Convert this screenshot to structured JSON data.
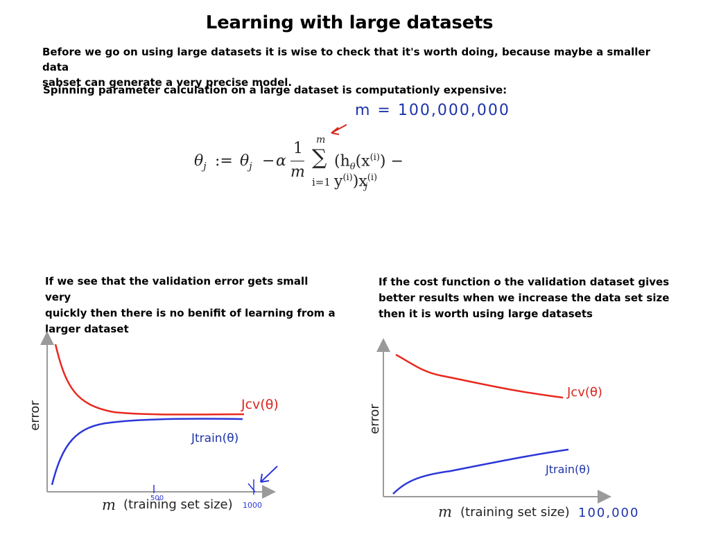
{
  "title": "Learning with large datasets",
  "intro": {
    "line1": "Before we go on using large datasets it is wise to check that it's worth doing, because maybe a smaller data",
    "line2": "sabset   can generate a very precise model.",
    "line3": "Spinning parameter calculation on a large dataset is computationly expensive:"
  },
  "handwritten_m": "m = 100,000,000",
  "formula": {
    "lhs": "θ",
    "lhs_sub": "j",
    "assign": ":=",
    "theta2": "θ",
    "theta2_sub": "j",
    "minus": "−",
    "alpha": "α",
    "frac_num": "1",
    "frac_den": "m",
    "sum_top": "m",
    "sum_symbol": "∑",
    "sum_bottom": "i=1",
    "body": "(h",
    "body_theta": "θ",
    "body_rest": "(x",
    "sup_i": "(i)",
    "body_close": ") − y",
    "sup_i2": "(i)",
    "body_x": ")x",
    "sup_i3": "(i)",
    "sub_j": "j"
  },
  "left_panel": {
    "note_line1": "If we see that the validation error gets small very",
    "note_line2": "quickly then there is no benifit of learning from a",
    "note_line3": "larger dataset",
    "ylabel": "error",
    "xlabel_m": "m",
    "xlabel_rest": "(training set size)",
    "tick_mid": "500",
    "tick_end": "1000",
    "jcv_label": "Jcv(θ)",
    "jtrain_label": "Jtrain(θ)"
  },
  "right_panel": {
    "note_line1": "If the cost function o the validation dataset gives",
    "note_line2": "better results when we increase the data set size",
    "note_line3": "then it is worth using large datasets",
    "ylabel": "error",
    "xlabel_m": "m",
    "xlabel_rest": "(training set size)",
    "x_annotation": "100,000",
    "jcv_label": "Jcv(θ)",
    "jtrain_label": "Jtrain(θ)"
  },
  "colors": {
    "red_curve": "#e8281e",
    "blue_curve": "#2b36d8",
    "handwriting_red": "#d7261c",
    "handwriting_blue": "#1d33a8",
    "axis": "#9a9a9a"
  }
}
